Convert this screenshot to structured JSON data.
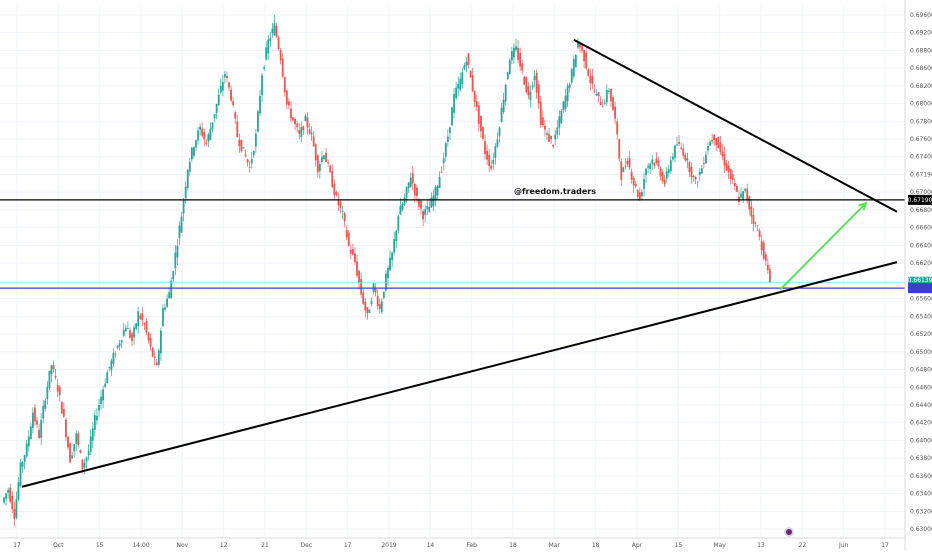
{
  "chart_data": {
    "type": "candlestick",
    "watermark": "@freedom.traders",
    "x_tick_labels": [
      "17",
      "Oct",
      "15",
      "14:00",
      "Nov",
      "12",
      "21",
      "Dec",
      "17",
      "2019",
      "14",
      "Feb",
      "18",
      "Mar",
      "18",
      "Apr",
      "15",
      "May",
      "13",
      "22",
      "Jun",
      "17"
    ],
    "y_tick_labels": [
      "0.69600",
      "0.69200",
      "0.68800",
      "0.68600",
      "0.68200",
      "0.68000",
      "0.67800",
      "0.67600",
      "0.67400",
      "0.67190",
      "0.67000",
      "0.66800",
      "0.66600",
      "0.66400",
      "0.66200",
      "0.65800",
      "0.65600",
      "0.65400",
      "0.65200",
      "0.65000",
      "0.64800",
      "0.64600",
      "0.64400",
      "0.64200",
      "0.64000",
      "0.63800",
      "0.63600",
      "0.63400",
      "0.63200",
      "0.63000"
    ],
    "ylim": [
      0.629,
      0.6965
    ],
    "current_price_label": "0.66139",
    "countdown_label": "01:08:29",
    "lines": {
      "horizontal_resistance": 0.6719,
      "horizontal_support_blue": 0.6607,
      "current_price": 0.66139,
      "descending_trendline": {
        "start": [
          "Mar 07",
          0.6922
        ],
        "end": [
          "Jun 20",
          0.6704
        ]
      },
      "ascending_trendline": {
        "start": [
          "Sep 17",
          0.6355
        ],
        "end": [
          "Jun 20",
          0.664
        ]
      },
      "projection_arrow": {
        "start": [
          "May 15",
          0.6605
        ],
        "end": [
          "Jun 11",
          0.6715
        ]
      }
    },
    "price_path": [
      0.6335,
      0.6352,
      0.632,
      0.638,
      0.6405,
      0.645,
      0.642,
      0.647,
      0.651,
      0.648,
      0.644,
      0.639,
      0.642,
      0.638,
      0.64,
      0.644,
      0.647,
      0.65,
      0.652,
      0.654,
      0.656,
      0.654,
      0.6575,
      0.656,
      0.653,
      0.6505,
      0.658,
      0.66,
      0.665,
      0.67,
      0.676,
      0.679,
      0.681,
      0.679,
      0.682,
      0.685,
      0.688,
      0.685,
      0.68,
      0.678,
      0.676,
      0.68,
      0.688,
      0.692,
      0.694,
      0.69,
      0.684,
      0.682,
      0.68,
      0.682,
      0.68,
      0.676,
      0.678,
      0.675,
      0.672,
      0.67,
      0.666,
      0.664,
      0.66,
      0.657,
      0.661,
      0.658,
      0.662,
      0.665,
      0.67,
      0.672,
      0.675,
      0.672,
      0.67,
      0.671,
      0.673,
      0.676,
      0.68,
      0.685,
      0.687,
      0.69,
      0.686,
      0.682,
      0.678,
      0.676,
      0.68,
      0.685,
      0.69,
      0.691,
      0.688,
      0.685,
      0.688,
      0.682,
      0.68,
      0.679,
      0.682,
      0.685,
      0.688,
      0.692,
      0.69,
      0.687,
      0.685,
      0.684,
      0.686,
      0.682,
      0.675,
      0.677,
      0.674,
      0.672,
      0.676,
      0.677,
      0.676,
      0.674,
      0.677,
      0.679,
      0.678,
      0.676,
      0.674,
      0.676,
      0.679,
      0.68,
      0.678,
      0.676,
      0.674,
      0.672,
      0.673,
      0.67,
      0.668,
      0.665,
      0.6615
    ]
  },
  "icons": {
    "bottom_logo": "tradingview-logo-icon"
  },
  "colors": {
    "up_candle": "#26a69a",
    "down_candle": "#ef5350",
    "resistance_line": "#000000",
    "support_line": "#3d3dd6",
    "current_price_line": "#7fd6cf",
    "current_price_tag": "#26a69a",
    "arrow": "#5ee05e",
    "trendline": "#000000"
  }
}
